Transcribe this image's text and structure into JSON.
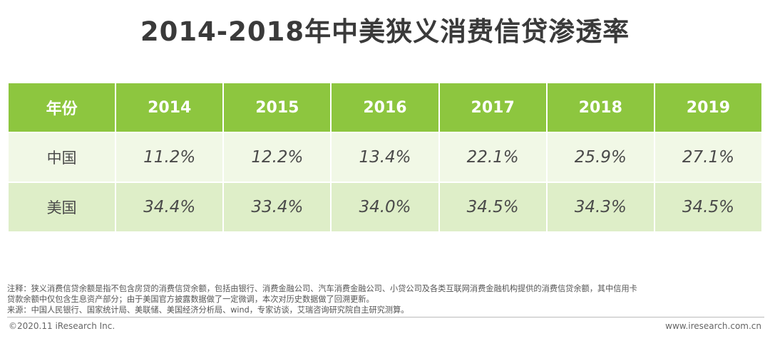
{
  "title": "2014-2018年中美狭义消费信贷渗透率",
  "table": {
    "header": [
      "年份",
      "2014",
      "2015",
      "2016",
      "2017",
      "2018",
      "2019"
    ],
    "rows": [
      {
        "label": "中国",
        "values": [
          "11.2%",
          "12.2%",
          "13.4%",
          "22.1%",
          "25.9%",
          "27.1%"
        ]
      },
      {
        "label": "美国",
        "values": [
          "34.4%",
          "33.4%",
          "34.0%",
          "34.5%",
          "34.3%",
          "34.5%"
        ]
      }
    ]
  },
  "chart_data": {
    "type": "table",
    "title": "2014-2018年中美狭义消费信贷渗透率",
    "categories": [
      "2014",
      "2015",
      "2016",
      "2017",
      "2018",
      "2019"
    ],
    "series": [
      {
        "name": "中国",
        "values": [
          11.2,
          12.2,
          13.4,
          22.1,
          25.9,
          27.1
        ]
      },
      {
        "name": "美国",
        "values": [
          34.4,
          33.4,
          34.0,
          34.5,
          34.3,
          34.5
        ]
      }
    ]
  },
  "notes": {
    "line1": "注释：狭义消费信贷余额是指不包含房贷的消费信贷余额，包括由银行、消费金融公司、汽车消费金融公司、小贷公司及各类互联网消费金融机构提供的消费信贷余额，其中信用卡",
    "line2": "贷款余额中仅包含生息资产部分；由于美国官方披露数据做了一定微调，本次对历史数据做了回溯更新。",
    "line3": "来源：中国人民银行、国家统计局、美联储、美国经济分析局、wind，专家访谈，艾瑞咨询研究院自主研究测算。"
  },
  "footer": {
    "copyright": "©2020.11 iResearch Inc.",
    "website": "www.iresearch.com.cn"
  },
  "colors": {
    "header_green": "#8dc63f",
    "row_light": "#f1f8e6",
    "row_mid": "#deeec8"
  }
}
